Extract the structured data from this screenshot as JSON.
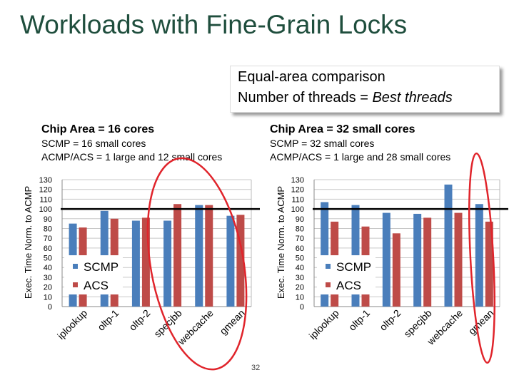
{
  "slide": {
    "title": "Workloads with Fine-Grain Locks",
    "page_number": "32"
  },
  "callout": {
    "line1": "Equal-area comparison",
    "line2_prefix": "Number of threads = ",
    "line2_emphasis": "Best threads"
  },
  "colors": {
    "scmp": "#4a7ebb",
    "acs": "#be4b48",
    "ellipse": "#e0242b",
    "title": "#1f4e3d"
  },
  "chart_data": [
    {
      "type": "bar",
      "title": "Chip Area = 16 cores",
      "subtitle_lines": [
        "SCMP = 16 small cores",
        "ACMP/ACS = 1 large and 12 small cores"
      ],
      "ylabel": "Exec. Time Norm. to ACMP",
      "xlabel": "",
      "ylim": [
        0,
        130
      ],
      "yticks": [
        0,
        10,
        20,
        30,
        40,
        50,
        60,
        70,
        80,
        90,
        100,
        110,
        120,
        130
      ],
      "reference_line": 100,
      "grid": true,
      "legend_position": "lower-left",
      "categories": [
        "iplookup",
        "oltp-1",
        "oltp-2",
        "specjbb",
        "webcache",
        "gmean"
      ],
      "series": [
        {
          "name": "SCMP",
          "values": [
            85,
            98,
            88,
            88,
            104,
            93
          ]
        },
        {
          "name": "ACS",
          "values": [
            81,
            90,
            91,
            105,
            104,
            94
          ]
        }
      ],
      "highlight": "oltp-2 through gmean circled"
    },
    {
      "type": "bar",
      "title": "Chip Area = 32 small cores",
      "subtitle_lines": [
        "SCMP = 32 small cores",
        "ACMP/ACS =  1 large and 28 small cores"
      ],
      "ylabel": "Exec. Time Norm. to ACMP",
      "xlabel": "",
      "ylim": [
        0,
        130
      ],
      "yticks": [
        0,
        10,
        20,
        30,
        40,
        50,
        60,
        70,
        80,
        90,
        100,
        110,
        120,
        130
      ],
      "reference_line": 100,
      "grid": true,
      "legend_position": "lower-left",
      "categories": [
        "iplookup",
        "oltp-1",
        "oltp-2",
        "specjbb",
        "webcache",
        "gmean"
      ],
      "series": [
        {
          "name": "SCMP",
          "values": [
            107,
            104,
            96,
            95,
            125,
            105
          ]
        },
        {
          "name": "ACS",
          "values": [
            87,
            82,
            75,
            91,
            96,
            87
          ]
        }
      ],
      "highlight": "gmean circled"
    }
  ]
}
